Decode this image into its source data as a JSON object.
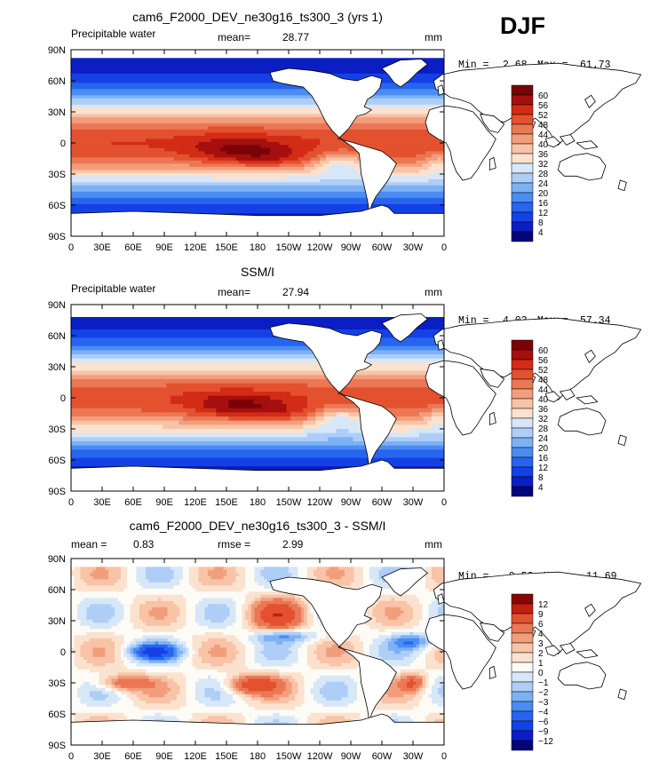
{
  "season": "DJF",
  "colors": {
    "model_scale": [
      "#04057a",
      "#0b1ec4",
      "#1441e6",
      "#2765ee",
      "#4a8cf2",
      "#7cb1f5",
      "#aecdf7",
      "#d7e7f8",
      "#fbe2cf",
      "#f8c3a6",
      "#f29e7c",
      "#eb7755",
      "#e3512f",
      "#d22c16",
      "#a50f0f",
      "#7a0306"
    ],
    "diff_scale": [
      "#04057a",
      "#0b1ec4",
      "#1441e6",
      "#2765ee",
      "#4a8cf2",
      "#7cb1f5",
      "#aecdf7",
      "#d7e7f8",
      "#fdfbf6",
      "#fbe2cf",
      "#f8c3a6",
      "#f29e7c",
      "#eb7755",
      "#e3512f",
      "#c21f10",
      "#8a0606"
    ]
  },
  "lat_labels": [
    "90N",
    "60N",
    "30N",
    "0",
    "30S",
    "60S",
    "90S"
  ],
  "lon_labels": [
    "0",
    "30E",
    "60E",
    "90E",
    "120E",
    "150E",
    "180",
    "150W",
    "120W",
    "90W",
    "60W",
    "30W",
    "0"
  ],
  "panels": [
    {
      "title": "cam6_F2000_DEV_ne30g16_ts300_3 (yrs 1)",
      "left_label": "Precipitable water",
      "mid_label": "mean=",
      "mid_value": "28.77",
      "right_label": "mm",
      "min_label": "Min =",
      "min_value": "2.68",
      "max_label": "Max =",
      "max_value": "61.73",
      "levels": [
        "60",
        "56",
        "52",
        "48",
        "44",
        "40",
        "36",
        "32",
        "28",
        "24",
        "20",
        "16",
        "12",
        "8",
        "4"
      ]
    },
    {
      "title": "SSM/I",
      "left_label": "Precipitable water",
      "mid_label": "mean=",
      "mid_value": "27.94",
      "right_label": "mm",
      "min_label": "Min =",
      "min_value": "4.03",
      "max_label": "Max =",
      "max_value": "57.34",
      "levels": [
        "60",
        "56",
        "52",
        "48",
        "44",
        "40",
        "36",
        "32",
        "28",
        "24",
        "20",
        "16",
        "12",
        "8",
        "4"
      ]
    },
    {
      "title": "cam6_F2000_DEV_ne30g16_ts300_3 - SSM/I",
      "left_label": "mean =",
      "left_value": "0.83",
      "mid_label": "rmse =",
      "mid_value": "2.99",
      "right_label": "mm",
      "min_label": "Min =",
      "min_value": "-9.50",
      "max_label": "Max =",
      "max_value": "11.69",
      "levels": [
        "12",
        "9",
        "6",
        "4",
        "3",
        "2",
        "1",
        "0",
        "−1",
        "−2",
        "−3",
        "−4",
        "−6",
        "−9",
        "−12"
      ]
    }
  ]
}
